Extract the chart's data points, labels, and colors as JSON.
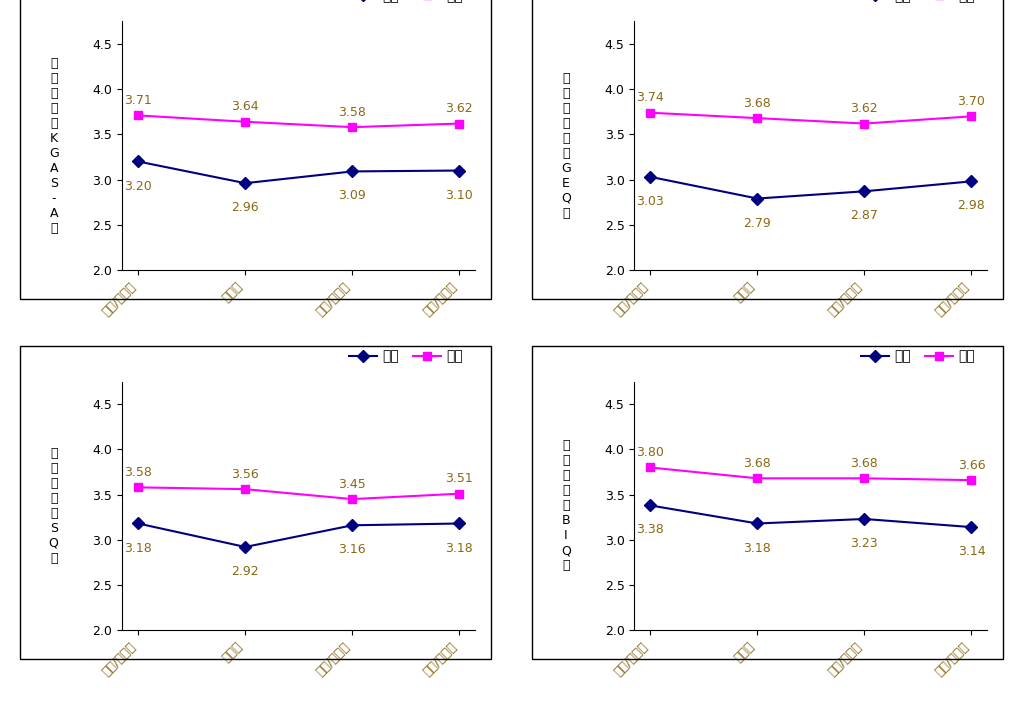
{
  "panels": [
    {
      "ylabel_lines": [
        "성",
        "인",
        "지",
        "력",
        "（",
        "K",
        "G",
        "A",
        "S",
        "-",
        "A",
        "）"
      ],
      "male": [
        3.2,
        2.96,
        3.09,
        3.1
      ],
      "female": [
        3.71,
        3.64,
        3.58,
        3.62
      ]
    },
    {
      "ylabel_lines": [
        "성",
        "평",
        "등",
        "의",
        "식",
        "（",
        "G",
        "E",
        "Q",
        "）"
      ],
      "male": [
        3.03,
        2.79,
        2.87,
        2.98
      ],
      "female": [
        3.74,
        3.68,
        3.62,
        3.7
      ]
    },
    {
      "ylabel_lines": [
        "성",
        "인",
        "지",
        "성",
        "（",
        "S",
        "Q",
        "）"
      ],
      "male": [
        3.18,
        2.92,
        3.16,
        3.18
      ],
      "female": [
        3.58,
        3.56,
        3.45,
        3.51
      ]
    },
    {
      "ylabel_lines": [
        "실",
        "행",
        "의",
        "지",
        "（",
        "B",
        "I",
        "Q",
        "）"
      ],
      "male": [
        3.38,
        3.18,
        3.23,
        3.14
      ],
      "female": [
        3.8,
        3.68,
        3.68,
        3.66
      ]
    }
  ],
  "x_labels": [
    "서울/경기권",
    "영남권",
    "호남/제주권",
    "충청/강원권"
  ],
  "ylim": [
    2.0,
    4.75
  ],
  "yticks": [
    2.0,
    2.5,
    3.0,
    3.5,
    4.0,
    4.5
  ],
  "male_color": "#000080",
  "female_color": "#FF00FF",
  "male_marker": "D",
  "female_marker": "s",
  "male_label": "남자",
  "female_label": "여자",
  "annotation_color": "#8B6914",
  "background_color": "#ffffff",
  "border_color": "#000000",
  "legend_fontsize": 10,
  "tick_fontsize": 9,
  "ylabel_fontsize": 9,
  "annotation_fontsize": 9,
  "line_width": 1.5,
  "marker_size": 6
}
